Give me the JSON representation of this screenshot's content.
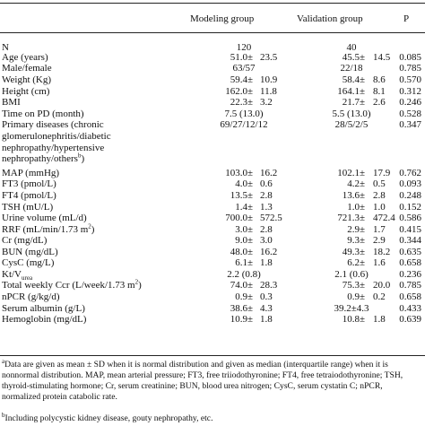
{
  "header": {
    "modeling": "Modeling group",
    "validation": "Validation group",
    "p": "P"
  },
  "rows": [
    {
      "label": "N",
      "mv": "120",
      "vv": "40",
      "p": ""
    },
    {
      "label": "Age (years)",
      "mv": "51.0",
      "msd": "23.5",
      "vv": "45.5",
      "vsd": "14.5",
      "p": "0.085"
    },
    {
      "label": "Male/female",
      "mv": "63/57",
      "vv": "22/18",
      "p": "0.785"
    },
    {
      "label": "Weight (Kg)",
      "mv": "59.4",
      "msd": "10.9",
      "vv": "58.4",
      "vsd": "8.6",
      "p": "0.570"
    },
    {
      "label": "Height (cm)",
      "mv": "162.0",
      "msd": "11.8",
      "vv": "164.1",
      "vsd": "8.1",
      "p": "0.312"
    },
    {
      "label": "BMI",
      "mv": "22.3",
      "msd": "3.2",
      "vv": "21.7",
      "vsd": "2.6",
      "p": "0.246"
    },
    {
      "label": "Time on PD (month)",
      "mv": "7.5 (13.0)",
      "vv": "5.5 (13.0)",
      "p": "0.528"
    },
    {
      "label": "Primary diseases (chronic",
      "mv": "69/27/12/12",
      "vv": "28/5/2/5",
      "p": "0.347"
    },
    {
      "label": "MAP (mmHg)",
      "mv": "103.0",
      "msd": "16.2",
      "vv": "102.1",
      "vsd": "17.9",
      "p": "0.762"
    },
    {
      "label": "FT3 (pmol/L)",
      "mv": "4.0",
      "msd": "0.6",
      "vv": "4.2",
      "vsd": "0.5",
      "p": "0.093"
    },
    {
      "label": "FT4 (pmol/L)",
      "mv": "13.5",
      "msd": "2.8",
      "vv": "13.6",
      "vsd": "2.8",
      "p": "0.248"
    },
    {
      "label": "TSH (mU/L)",
      "mv": "1.4",
      "msd": "1.3",
      "vv": "1.0",
      "vsd": "1.0",
      "p": "0.152"
    },
    {
      "label": "Urine volume (mL/d)",
      "mv": "700.0",
      "msd": "572.5",
      "vv": "721.3",
      "vsd": "472.4",
      "p": "0.586"
    },
    {
      "label": "RRF (mL/min/1.73 m",
      "sup": "2",
      "suffix": ")",
      "mv": "3.0",
      "msd": "2.8",
      "vv": "2.9",
      "vsd": "1.7",
      "p": "0.415"
    },
    {
      "label": "Cr (mg/dL)",
      "mv": "9.0",
      "msd": "3.0",
      "vv": "9.3",
      "vsd": "2.9",
      "p": "0.344"
    },
    {
      "label": "BUN (mg/dL)",
      "mv": "48.0",
      "msd": "16.2",
      "vv": "49.3",
      "vsd": "18.2",
      "p": "0.635"
    },
    {
      "label": "CysC (mg/L)",
      "mv": "6.1",
      "msd": "1.8",
      "vv": "6.2",
      "vsd": "1.6",
      "p": "0.658"
    },
    {
      "label": "Kt/V",
      "sub": "urea",
      "mv": "2.2 (0.8)",
      "vv": "2.1 (0.6)",
      "p": "0.236"
    },
    {
      "label": "Total weekly Ccr (L/week/1.73 m",
      "sup": "2",
      "suffix": ")",
      "mv": "74.0",
      "msd": "28.3",
      "vv": "75.3",
      "vsd": "20.0",
      "p": "0.785"
    },
    {
      "label": "nPCR (g/kg/d)",
      "mv": "0.9",
      "msd": "0.3",
      "vv": "0.9",
      "vsd": "0.2",
      "p": "0.658"
    },
    {
      "label": "Serum albumin (g/L)",
      "mv": "38.6",
      "msd": "4.3",
      "vv": "39.2±4.3",
      "p": "0.433"
    },
    {
      "label": "Hemoglobin (mg/dL)",
      "mv": "10.9",
      "msd": "1.8",
      "vv": "10.8",
      "vsd": "1.8",
      "p": "0.639"
    }
  ],
  "multiline_label": [
    "glomerulonephritis/diabetic",
    "nephropathy/hypertensive",
    "nephropathy/others"
  ],
  "multiline_sup": "b",
  "multiline_suffix": ")",
  "footnote_a": {
    "mark": "a",
    "text": "Data are given as mean ± SD when it is normal distribution and given as median (interquartile range) when it is nonnormal distribution. MAP, mean arterial pressure; FT3, free triiodothyronine; FT4, free tetraiodothyronine; TSH, thyroid-stimulating hormone; Cr, serum creatinine; BUN, blood urea nitrogen; CysC, serum cystatin C; nPCR, normalized protein catabolic rate."
  },
  "footnote_b": {
    "mark": "b",
    "text": "Including polycystic kidney disease, gouty nephropathy, etc."
  },
  "pm": "±"
}
